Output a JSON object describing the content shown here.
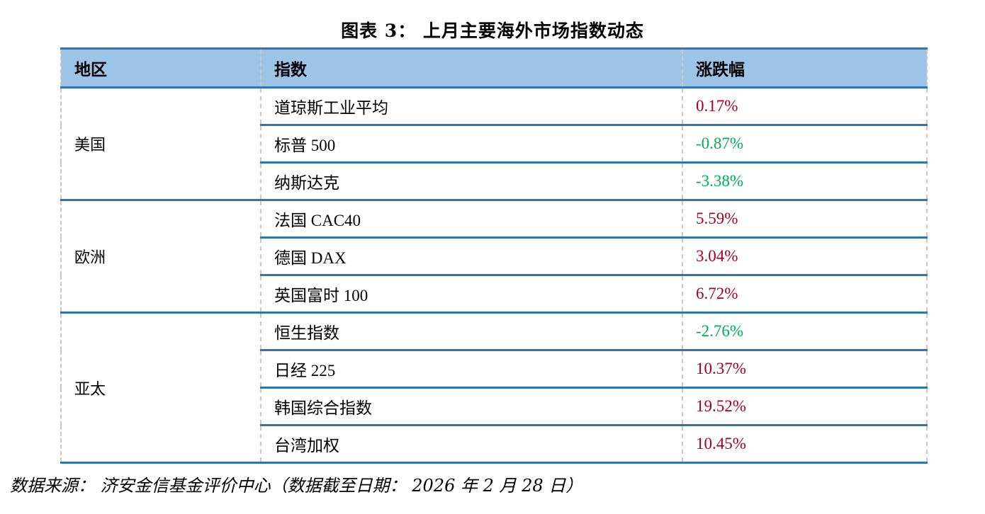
{
  "title": "图表 3： 上月主要海外市场指数动态",
  "table": {
    "headers": [
      "地区",
      "指数",
      "涨跌幅"
    ],
    "groups": [
      {
        "region": "美国",
        "rows": [
          {
            "index": "道琼斯工业平均",
            "change": "0.17%",
            "direction": "up"
          },
          {
            "index": "标普 500",
            "change": "-0.87%",
            "direction": "down"
          },
          {
            "index": "纳斯达克",
            "change": "-3.38%",
            "direction": "down"
          }
        ]
      },
      {
        "region": "欧洲",
        "rows": [
          {
            "index": "法国 CAC40",
            "change": "5.59%",
            "direction": "up"
          },
          {
            "index": "德国 DAX",
            "change": "3.04%",
            "direction": "up"
          },
          {
            "index": "英国富时 100",
            "change": "6.72%",
            "direction": "up"
          }
        ]
      },
      {
        "region": "亚太",
        "rows": [
          {
            "index": "恒生指数",
            "change": "-2.76%",
            "direction": "down"
          },
          {
            "index": "日经 225",
            "change": "10.37%",
            "direction": "up"
          },
          {
            "index": "韩国综合指数",
            "change": "19.52%",
            "direction": "up"
          },
          {
            "index": "台湾加权",
            "change": "10.45%",
            "direction": "up"
          }
        ]
      }
    ]
  },
  "colors": {
    "header_bg": "#9dc3e6",
    "border": "#2e75b6",
    "positive": "#a50021",
    "negative": "#00b050"
  },
  "source": "数据来源： 济安金信基金评价中心（数据截至日期： 2026 年 2 月 28 日）"
}
